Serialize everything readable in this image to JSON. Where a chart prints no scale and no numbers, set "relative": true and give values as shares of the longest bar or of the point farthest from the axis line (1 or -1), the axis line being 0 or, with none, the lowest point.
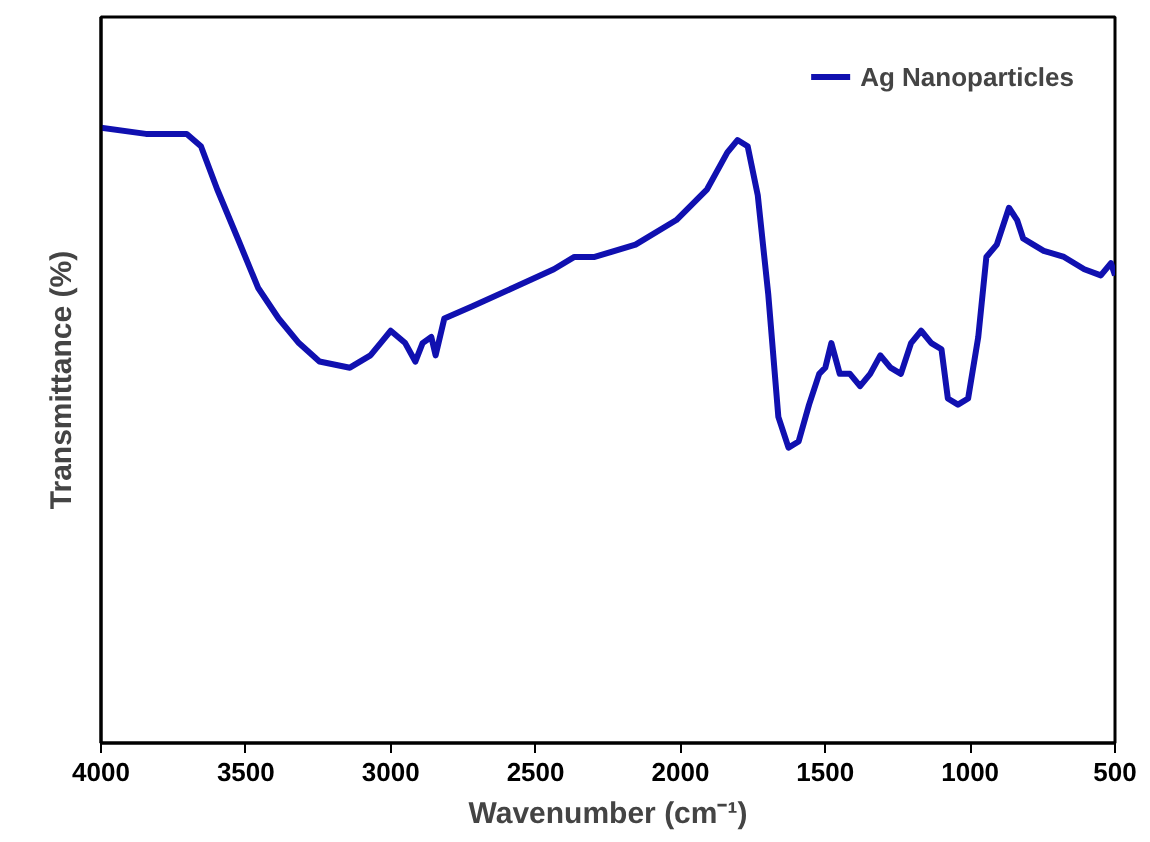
{
  "chart_data": {
    "type": "line",
    "xlabel": "Wavenumber (cm⁻¹)",
    "ylabel": "Transmittance (%)",
    "relative": true,
    "xlim": [
      4000,
      500
    ],
    "xticks": [
      4000,
      3500,
      3000,
      2500,
      2000,
      1500,
      1000,
      500
    ],
    "tick_labels": "x",
    "legend": "top right",
    "grid": false,
    "series": [
      {
        "name": "Ag Nanoparticles",
        "color": "#1010b0",
        "x": [
          4000,
          3845,
          3740,
          3704,
          3655,
          3599,
          3528,
          3458,
          3387,
          3317,
          3246,
          3141,
          3070,
          3035,
          3000,
          2950,
          2915,
          2890,
          2860,
          2845,
          2815,
          2718,
          2577,
          2437,
          2366,
          2296,
          2155,
          2014,
          1908,
          1838,
          1803,
          1768,
          1733,
          1697,
          1662,
          1627,
          1592,
          1556,
          1521,
          1500,
          1479,
          1450,
          1415,
          1380,
          1345,
          1310,
          1275,
          1239,
          1204,
          1169,
          1134,
          1099,
          1077,
          1042,
          1007,
          972,
          944,
          908,
          866,
          838,
          817,
          782,
          746,
          676,
          606,
          549,
          514,
          500
        ],
        "values": [
          1.0,
          0.99,
          0.99,
          0.99,
          0.97,
          0.9,
          0.82,
          0.74,
          0.69,
          0.65,
          0.62,
          0.61,
          0.63,
          0.65,
          0.67,
          0.65,
          0.62,
          0.65,
          0.66,
          0.63,
          0.69,
          0.71,
          0.74,
          0.77,
          0.79,
          0.79,
          0.81,
          0.85,
          0.9,
          0.96,
          0.98,
          0.97,
          0.89,
          0.73,
          0.53,
          0.48,
          0.49,
          0.55,
          0.6,
          0.61,
          0.65,
          0.6,
          0.6,
          0.58,
          0.6,
          0.63,
          0.61,
          0.6,
          0.65,
          0.67,
          0.65,
          0.64,
          0.56,
          0.55,
          0.56,
          0.66,
          0.79,
          0.81,
          0.87,
          0.85,
          0.82,
          0.81,
          0.8,
          0.79,
          0.77,
          0.76,
          0.78,
          0.76
        ]
      }
    ]
  }
}
